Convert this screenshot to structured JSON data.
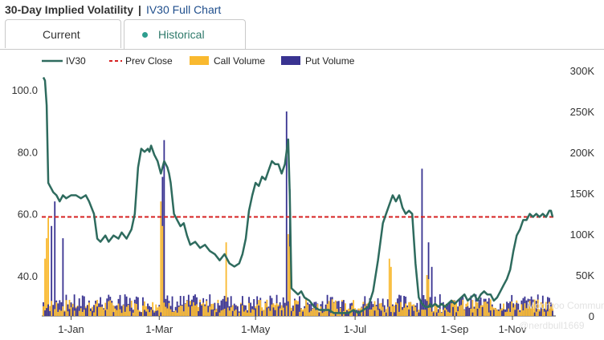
{
  "header": {
    "title": "30-Day Implied Volatility",
    "separator": "|",
    "link_label": "IV30 Full Chart"
  },
  "tabs": [
    {
      "label": "Current",
      "active": false
    },
    {
      "label": "Historical",
      "active": true
    }
  ],
  "watermark": {
    "site": "Moomoo Community",
    "handle": "@nerdbull1669"
  },
  "chart_data": {
    "type": "line",
    "x_tick_labels": [
      "1-Jan",
      "1-Mar",
      "1-May",
      "1-Jul",
      "1-Sep",
      "1-Nov"
    ],
    "y_left_ticks": [
      "40.0",
      "60.0",
      "80.0",
      "100.0"
    ],
    "y_right_ticks": [
      "0",
      "50K",
      "100K",
      "150K",
      "200K",
      "250K",
      "300K"
    ],
    "ylim_left": [
      25.7,
      104.6
    ],
    "ylim_right": [
      0,
      300000
    ],
    "legend": [
      {
        "label": "IV30",
        "color": "#2e6b5e",
        "style": "line"
      },
      {
        "label": "Prev Close",
        "color": "#d62020",
        "style": "dashed"
      },
      {
        "label": "Call Volume",
        "color": "#f9b92f",
        "style": "box"
      },
      {
        "label": "Put Volume",
        "color": "#393391",
        "style": "box"
      }
    ],
    "prev_close": 59.0,
    "iv30": {
      "name": "IV30",
      "x_days": [
        0,
        1,
        2,
        3,
        4,
        5,
        6,
        8,
        10,
        12,
        14,
        17,
        20,
        23,
        26,
        28,
        31,
        33,
        35,
        38,
        40,
        43,
        46,
        48,
        51,
        54,
        56,
        58,
        60,
        62,
        64,
        65,
        66,
        68,
        70,
        72,
        74,
        76,
        77,
        78,
        80,
        82,
        84,
        86,
        88,
        90,
        93,
        96,
        99,
        102,
        105,
        108,
        111,
        114,
        117,
        120,
        122,
        124,
        126,
        128,
        130,
        132,
        134,
        136,
        138,
        140,
        142,
        144,
        146,
        148,
        150,
        151,
        152,
        154,
        156,
        158,
        160,
        163,
        166,
        169,
        172,
        175,
        178,
        181,
        184,
        187,
        190,
        193,
        196,
        199,
        202,
        205,
        208,
        210,
        212,
        214,
        216,
        218,
        220,
        222,
        224,
        226,
        228,
        230,
        232,
        234,
        236,
        237,
        238,
        240,
        242,
        244,
        246,
        248,
        250,
        252,
        254,
        256,
        258,
        260,
        262,
        264,
        266,
        268,
        270,
        272,
        274,
        276,
        278,
        280,
        282,
        284,
        286,
        288,
        290,
        292,
        294,
        296,
        298,
        300,
        302,
        304,
        306,
        308,
        310,
        311,
        312
      ],
      "values": [
        104,
        103,
        95,
        70,
        69,
        68,
        67,
        66,
        64,
        66,
        65,
        66,
        66,
        65,
        66,
        64,
        60,
        52,
        51,
        53,
        51,
        53,
        52,
        54,
        52,
        55,
        60,
        75,
        81,
        80,
        81,
        80,
        82,
        79,
        77,
        73,
        77,
        75,
        73,
        70,
        60,
        58,
        56,
        57,
        53,
        50,
        51,
        49,
        50,
        48,
        47,
        45,
        47,
        44,
        43,
        44,
        47,
        52,
        61,
        66,
        70,
        69,
        72,
        71,
        74,
        77,
        76,
        76,
        73,
        76,
        84,
        66,
        36,
        35,
        34,
        35,
        33,
        32,
        30,
        29,
        29,
        29,
        28,
        28,
        28,
        28,
        29,
        28,
        29,
        30,
        35,
        45,
        57,
        60,
        63,
        66,
        64,
        66,
        62,
        60,
        61,
        60,
        44,
        33,
        31,
        30,
        30,
        31,
        30,
        31,
        30,
        31,
        30,
        31,
        32,
        31,
        32,
        33,
        34,
        32,
        33,
        34,
        32,
        34,
        35,
        34,
        34,
        32,
        33,
        35,
        37,
        39,
        42,
        48,
        53,
        55,
        58,
        58,
        60,
        59,
        60,
        59,
        60,
        59,
        61,
        61,
        59
      ]
    },
    "volume": {
      "note": "daily option volume bars",
      "spikes_call": [
        [
          1,
          70000
        ],
        [
          2,
          95000
        ],
        [
          3,
          120000
        ],
        [
          72,
          140000
        ],
        [
          73,
          110000
        ],
        [
          112,
          90000
        ],
        [
          150,
          100000
        ],
        [
          151,
          85000
        ],
        [
          212,
          70000
        ],
        [
          213,
          60000
        ],
        [
          235,
          50000
        ],
        [
          236,
          45000
        ]
      ],
      "spikes_put": [
        [
          5,
          110000
        ],
        [
          7,
          140000
        ],
        [
          12,
          95000
        ],
        [
          74,
          215000
        ],
        [
          73,
          170000
        ],
        [
          149,
          250000
        ],
        [
          151,
          155000
        ],
        [
          232,
          180000
        ],
        [
          236,
          90000
        ],
        [
          238,
          60000
        ]
      ],
      "baseline_call": 12000,
      "baseline_put": 14000
    }
  }
}
